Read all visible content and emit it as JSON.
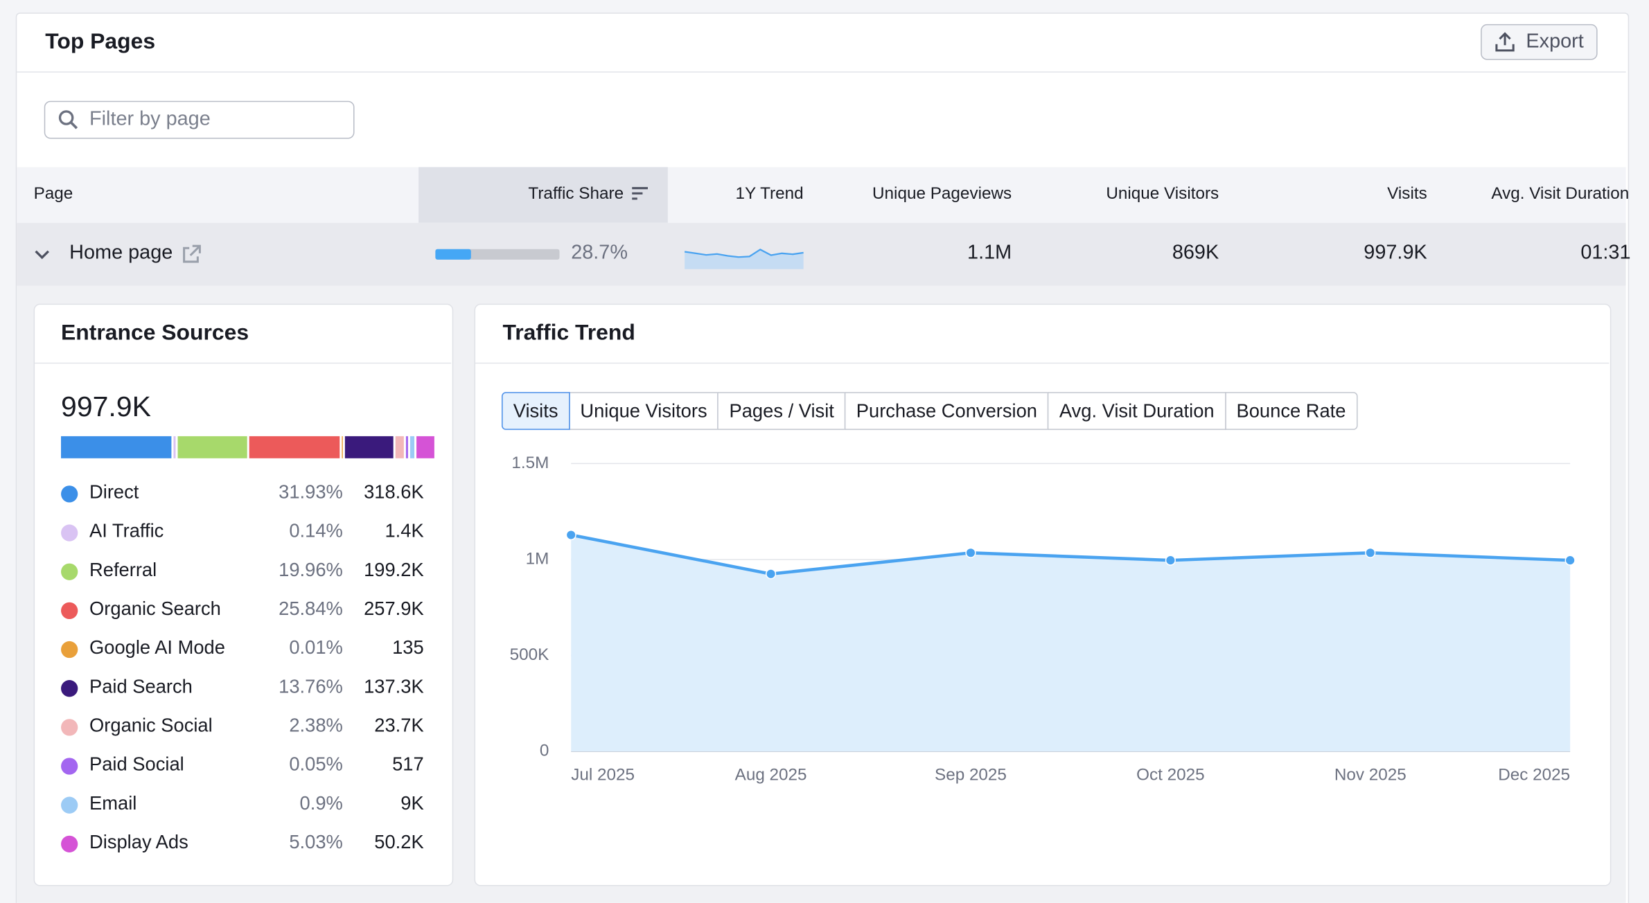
{
  "header": {
    "title": "Top Pages",
    "export": "Export"
  },
  "filter": {
    "placeholder": "Filter by page"
  },
  "table": {
    "columns": [
      "Page",
      "Traffic Share",
      "1Y Trend",
      "Unique Pageviews",
      "Unique Visitors",
      "Visits",
      "Avg. Visit Duration"
    ],
    "row": {
      "page": "Home page",
      "traffic_share": 28.7,
      "traffic_share_label": "28.7%",
      "trend": {
        "values": [
          0.55,
          0.5,
          0.45,
          0.48,
          0.42,
          0.38,
          0.4,
          0.62,
          0.44,
          0.5,
          0.47,
          0.52
        ],
        "ylim": [
          0,
          1
        ]
      },
      "unique_pageviews": "1.1M",
      "unique_visitors": "869K",
      "visits": "997.9K",
      "avg_visit_duration": "01:31"
    }
  },
  "entrance_sources": {
    "title": "Entrance Sources",
    "total": "997.9K",
    "categories": [
      "Direct",
      "AI Traffic",
      "Referral",
      "Organic Search",
      "Google AI Mode",
      "Paid Search",
      "Organic Social",
      "Paid Social",
      "Email",
      "Display Ads"
    ],
    "colors": [
      "#3b8fe8",
      "#d9c3f3",
      "#a7d96b",
      "#ec5a5a",
      "#e9a03a",
      "#3a1a7c",
      "#f2b7b9",
      "#a366f0",
      "#9ccbf5",
      "#d553d6"
    ],
    "values": [
      31.93,
      0.14,
      19.96,
      25.84,
      0.01,
      13.76,
      2.38,
      0.05,
      0.9,
      5.03
    ],
    "value_labels": [
      "31.93%",
      "0.14%",
      "19.96%",
      "25.84%",
      "0.01%",
      "13.76%",
      "2.38%",
      "0.05%",
      "0.9%",
      "5.03%"
    ],
    "visits": [
      "318.6K",
      "1.4K",
      "199.2K",
      "257.9K",
      "135",
      "137.3K",
      "23.7K",
      "517",
      "9K",
      "50.2K"
    ]
  },
  "traffic_trend": {
    "title": "Traffic Trend",
    "tabs": [
      "Visits",
      "Unique Visitors",
      "Pages / Visit",
      "Purchase Conversion",
      "Avg. Visit Duration",
      "Bounce Rate"
    ]
  },
  "chart_data": {
    "type": "area",
    "categories": [
      "Jul 2025",
      "Aug 2025",
      "Sep 2025",
      "Oct 2025",
      "Nov 2025",
      "Dec 2025"
    ],
    "series": [
      {
        "name": "Visits",
        "color": "#4aa3f0",
        "values": [
          1128000,
          925000,
          1035000,
          996000,
          1035000,
          996000
        ]
      }
    ],
    "ylim": [
      0,
      1500000
    ],
    "yticks": [
      0,
      {
        "value": 500000,
        "label": "500K"
      },
      {
        "value": 1000000,
        "label": "1M"
      },
      {
        "value": 1500000,
        "label": "1.5M"
      }
    ],
    "grid": true
  }
}
